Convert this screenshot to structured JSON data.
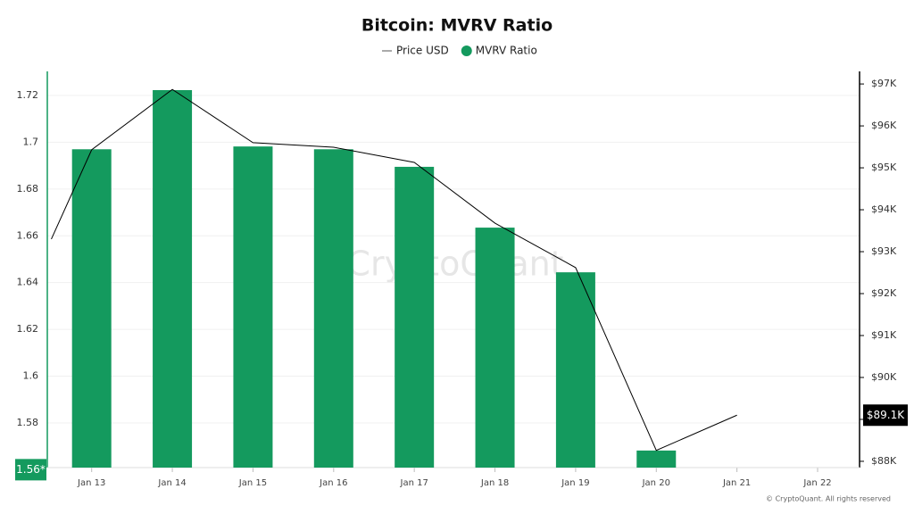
{
  "chart_data": {
    "type": "bar",
    "title": "Bitcoin: MVRV Ratio",
    "xlim": [
      12.45,
      22.52
    ],
    "xticks": [
      {
        "value": 13,
        "label": "Jan 13"
      },
      {
        "value": 14,
        "label": "Jan 14"
      },
      {
        "value": 15,
        "label": "Jan 15"
      },
      {
        "value": 16,
        "label": "Jan 16"
      },
      {
        "value": 17,
        "label": "Jan 17"
      },
      {
        "value": 18,
        "label": "Jan 18"
      },
      {
        "value": 19,
        "label": "Jan 19"
      },
      {
        "value": 20,
        "label": "Jan 20"
      },
      {
        "value": 21,
        "label": "Jan 21"
      },
      {
        "value": 22,
        "label": "Jan 22"
      }
    ],
    "ylim": [
      1.5609,
      1.7303
    ],
    "yticks": [
      1.58,
      {
        "value": 1.6,
        "label": "1.6"
      },
      1.62,
      1.64,
      1.66,
      1.68,
      {
        "value": 1.7,
        "label": "1.7"
      },
      1.72
    ],
    "y2lim": [
      87850,
      97300
    ],
    "y2ticks": [
      {
        "value": 88000,
        "label": "$88K"
      },
      {
        "value": 89000,
        "label": "$89K"
      },
      {
        "value": 90000,
        "label": "$90K"
      },
      {
        "value": 91000,
        "label": "$91K"
      },
      {
        "value": 92000,
        "label": "$92K"
      },
      {
        "value": 93000,
        "label": "$93K"
      },
      {
        "value": 94000,
        "label": "$94K"
      },
      {
        "value": 95000,
        "label": "$95K"
      },
      {
        "value": 96000,
        "label": "$96K"
      },
      {
        "value": 97000,
        "label": "$97K"
      }
    ],
    "grid": true,
    "series": [
      {
        "name": "Price USD",
        "type": "line",
        "axis": "y2",
        "color": "#000000",
        "x": [
          12.5,
          13,
          14,
          15,
          16,
          17,
          18,
          19,
          20,
          21
        ],
        "values": [
          93300,
          95430,
          96870,
          95600,
          95490,
          95130,
          93680,
          92620,
          88260,
          89100
        ]
      },
      {
        "name": "MVRV Ratio",
        "type": "bar",
        "color": "#149a5e",
        "x": [
          13,
          14,
          15,
          16,
          17,
          18,
          19,
          20
        ],
        "values": [
          1.697,
          1.7223,
          1.6982,
          1.697,
          1.6895,
          1.6635,
          1.6444,
          1.5682
        ]
      }
    ],
    "current_y": {
      "value": 1.56,
      "label": "1.56*"
    },
    "current_y2": {
      "value": 89100,
      "label": "$89.1K"
    },
    "watermark": "CryptoQuant",
    "footer": "© CryptoQuant. All rights reserved"
  }
}
